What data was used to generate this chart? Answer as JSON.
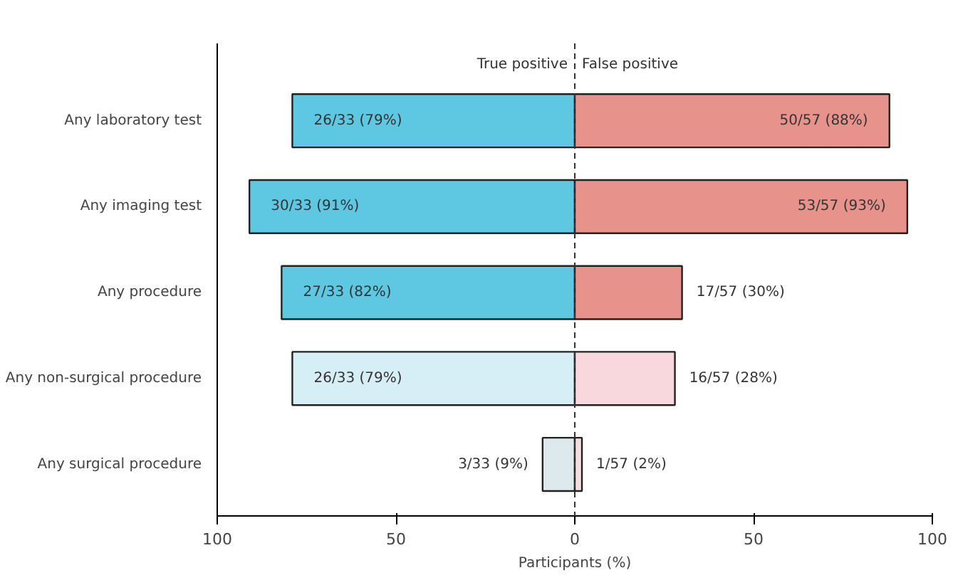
{
  "chart_data": {
    "type": "bar",
    "orientation": "horizontal",
    "xlabel": "Participants (%)",
    "categories": [
      "Any laboratory test",
      "Any imaging test",
      "Any procedure",
      "Any non-surgical procedure",
      "Any surgical procedure"
    ],
    "series": [
      {
        "name": "True positive",
        "colors": [
          "#5ec8e2",
          "#5ec8e2",
          "#5ec8e2",
          "#d6eef5",
          "#dde9ec"
        ],
        "values": [
          79,
          91,
          82,
          79,
          9
        ],
        "base": [
          -79,
          -91,
          -82,
          -79,
          -9
        ],
        "value_labels": [
          "26/33 (79%)",
          "30/33 (91%)",
          "27/33 (82%)",
          "26/33 (79%)",
          "3/33 (9%)"
        ]
      },
      {
        "name": "False positive",
        "colors": [
          "#e8928c",
          "#e8928c",
          "#e8928c",
          "#f8d8dc",
          "#f8dde0"
        ],
        "values": [
          88,
          93,
          30,
          28,
          2
        ],
        "value_labels": [
          "50/57 (88%)",
          "53/57 (93%)",
          "17/57 (30%)",
          "16/57 (28%)",
          "1/57 (2%)"
        ]
      }
    ],
    "xlim": [
      -100,
      100
    ],
    "xticks": [
      {
        "value": -100,
        "label": "100"
      },
      {
        "value": -50,
        "label": "50"
      },
      0,
      50,
      100
    ],
    "ref_lines": [
      {
        "axis": "x",
        "value": 0,
        "label": null,
        "line_style": "dashed",
        "color": "#333333"
      }
    ],
    "grid": false
  }
}
